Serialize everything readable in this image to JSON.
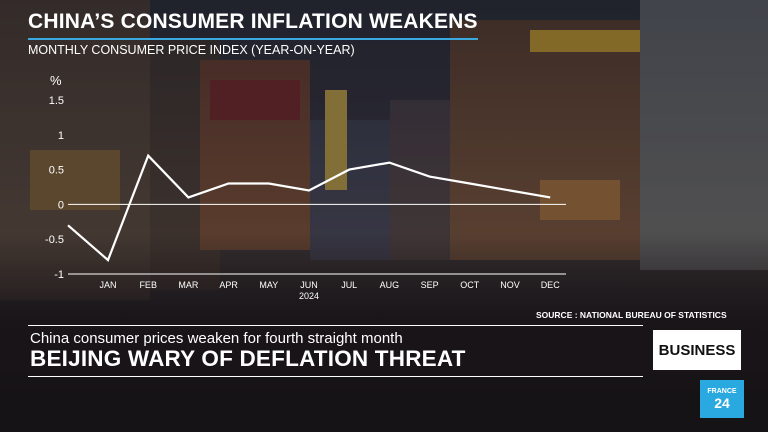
{
  "title": "CHINA’S CONSUMER INFLATION WEAKENS",
  "subtitle": "MONTHLY CONSUMER PRICE INDEX (YEAR-ON-YEAR)",
  "source": "SOURCE : NATIONAL BUREAU OF STATISTICS",
  "lower_third": {
    "headline": "China consumer prices weaken for fourth straight month",
    "kicker": "BEIJING WARY OF DEFLATION THREAT",
    "badge": "BUSINESS"
  },
  "logo": {
    "line1": "FRANCE",
    "line2": "24"
  },
  "colors": {
    "accent": "#39a9e0",
    "line": "#ffffff",
    "logo_bg": "#2aa8e0"
  },
  "chart_data": {
    "type": "line",
    "title": "CHINA’S CONSUMER INFLATION WEAKENS",
    "subtitle": "MONTHLY CONSUMER PRICE INDEX (YEAR-ON-YEAR)",
    "ylabel": "%",
    "ylim": [
      -1,
      1.5
    ],
    "yticks": [
      -1,
      -0.5,
      0,
      0.5,
      1,
      1.5
    ],
    "ytick_labels": [
      "-1",
      "-0.5",
      "0",
      "0.5",
      "1",
      "1.5"
    ],
    "categories": [
      "JAN",
      "FEB",
      "MAR",
      "APR",
      "MAY",
      "JUN",
      "JUL",
      "AUG",
      "SEP",
      "OCT",
      "NOV",
      "DEC"
    ],
    "year_label": "2024",
    "year_label_under": "JUN",
    "series": [
      {
        "start_value": -0.3,
        "values": [
          -0.8,
          0.7,
          0.1,
          0.3,
          0.3,
          0.2,
          0.5,
          0.6,
          0.4,
          0.3,
          0.2,
          0.1
        ]
      }
    ],
    "zero_line": true,
    "grid": false
  }
}
